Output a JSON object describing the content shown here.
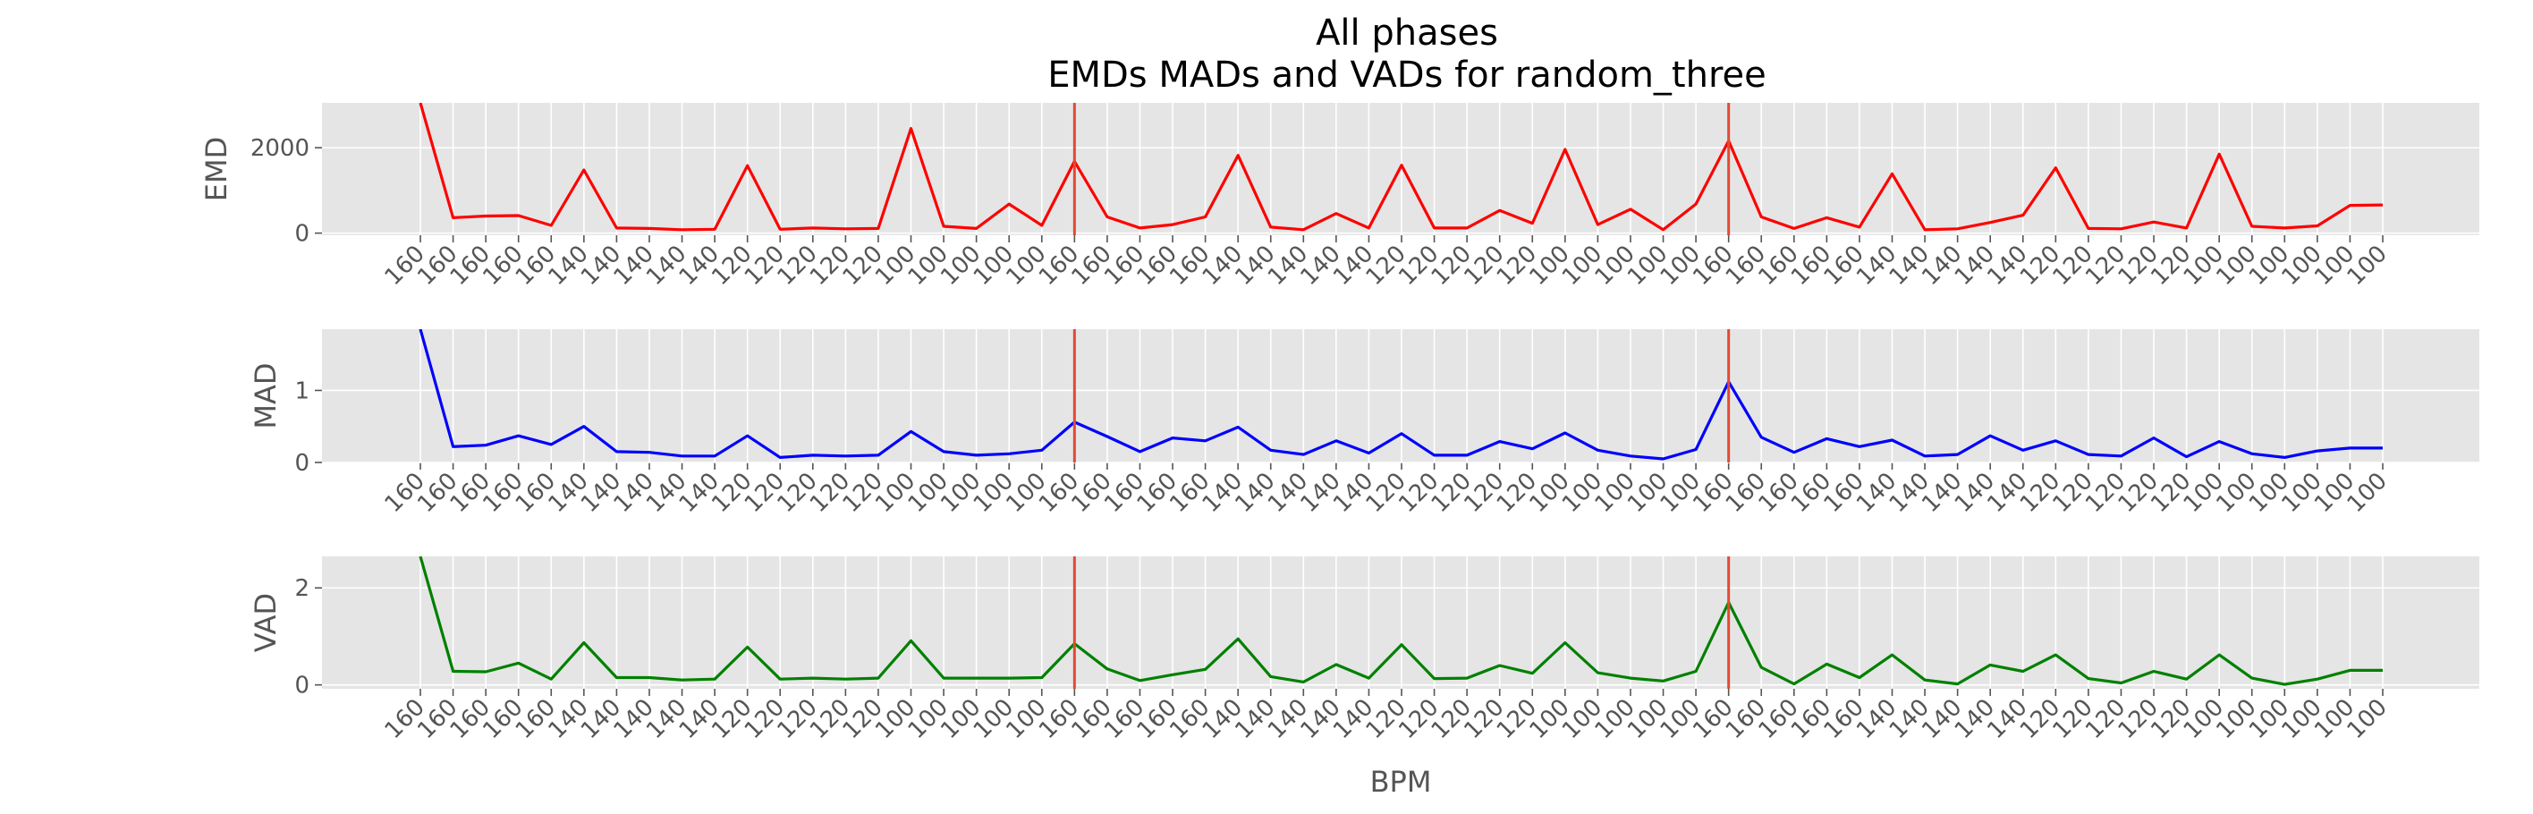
{
  "title_line1": "All phases",
  "title_line2": "EMDs MADs and VADs for random_three",
  "colors": {
    "panel_bg": "#e5e5e5",
    "grid": "#ffffff",
    "tick_text": "#555555",
    "label_text": "#555555",
    "title_text": "#000000",
    "phase_line": "#e24a33"
  },
  "chart_data": [
    {
      "type": "line",
      "ylabel": "EMD",
      "xlabel": "",
      "ylim": [
        -50,
        3050
      ],
      "yticks": [
        0,
        2000
      ],
      "ytick_labels": [
        "0",
        "2000"
      ],
      "grid": true,
      "phase_boundaries": [
        20,
        40
      ],
      "categories": [
        "160",
        "160",
        "160",
        "160",
        "160",
        "140",
        "140",
        "140",
        "140",
        "140",
        "120",
        "120",
        "120",
        "120",
        "120",
        "100",
        "100",
        "100",
        "100",
        "100",
        "160",
        "160",
        "160",
        "160",
        "160",
        "140",
        "140",
        "140",
        "140",
        "140",
        "120",
        "120",
        "120",
        "120",
        "120",
        "100",
        "100",
        "100",
        "100",
        "100",
        "160",
        "160",
        "160",
        "160",
        "160",
        "140",
        "140",
        "140",
        "140",
        "140",
        "120",
        "120",
        "120",
        "120",
        "120",
        "100",
        "100",
        "100",
        "100",
        "100",
        "100"
      ],
      "series": [
        {
          "color": "#ff0000",
          "values": [
            3050,
            360,
            400,
            410,
            180,
            1480,
            120,
            110,
            80,
            90,
            1580,
            90,
            120,
            100,
            110,
            2450,
            160,
            110,
            680,
            180,
            1680,
            380,
            120,
            200,
            380,
            1820,
            140,
            80,
            460,
            120,
            1590,
            120,
            120,
            530,
            230,
            1960,
            200,
            560,
            80,
            680,
            2160,
            380,
            110,
            360,
            140,
            1390,
            80,
            100,
            250,
            420,
            1530,
            110,
            100,
            260,
            120,
            1850,
            160,
            120,
            170,
            650,
            660
          ]
        }
      ]
    },
    {
      "type": "line",
      "ylabel": "MAD",
      "xlabel": "",
      "ylim": [
        0,
        1.85
      ],
      "yticks": [
        0,
        1
      ],
      "ytick_labels": [
        "0",
        "1"
      ],
      "grid": true,
      "phase_boundaries": [
        20,
        40
      ],
      "categories": [
        "160",
        "160",
        "160",
        "160",
        "160",
        "140",
        "140",
        "140",
        "140",
        "140",
        "120",
        "120",
        "120",
        "120",
        "120",
        "100",
        "100",
        "100",
        "100",
        "100",
        "160",
        "160",
        "160",
        "160",
        "160",
        "140",
        "140",
        "140",
        "140",
        "140",
        "120",
        "120",
        "120",
        "120",
        "120",
        "100",
        "100",
        "100",
        "100",
        "100",
        "160",
        "160",
        "160",
        "160",
        "160",
        "140",
        "140",
        "140",
        "140",
        "140",
        "120",
        "120",
        "120",
        "120",
        "120",
        "100",
        "100",
        "100",
        "100",
        "100",
        "100"
      ],
      "series": [
        {
          "color": "#0000ff",
          "values": [
            1.85,
            0.22,
            0.24,
            0.37,
            0.25,
            0.5,
            0.15,
            0.14,
            0.09,
            0.09,
            0.37,
            0.07,
            0.1,
            0.09,
            0.1,
            0.43,
            0.15,
            0.1,
            0.12,
            0.17,
            0.56,
            0.36,
            0.15,
            0.34,
            0.3,
            0.49,
            0.17,
            0.11,
            0.3,
            0.13,
            0.4,
            0.1,
            0.1,
            0.29,
            0.19,
            0.41,
            0.17,
            0.09,
            0.05,
            0.18,
            1.12,
            0.35,
            0.14,
            0.33,
            0.22,
            0.31,
            0.09,
            0.11,
            0.37,
            0.17,
            0.3,
            0.11,
            0.09,
            0.34,
            0.08,
            0.29,
            0.12,
            0.07,
            0.16,
            0.2,
            0.2
          ]
        }
      ]
    },
    {
      "type": "line",
      "ylabel": "VAD",
      "xlabel": "BPM",
      "ylim": [
        -0.08,
        2.65
      ],
      "yticks": [
        0,
        2
      ],
      "ytick_labels": [
        "0",
        "2"
      ],
      "grid": true,
      "phase_boundaries": [
        20,
        40
      ],
      "categories": [
        "160",
        "160",
        "160",
        "160",
        "160",
        "140",
        "140",
        "140",
        "140",
        "140",
        "120",
        "120",
        "120",
        "120",
        "120",
        "100",
        "100",
        "100",
        "100",
        "100",
        "160",
        "160",
        "160",
        "160",
        "160",
        "140",
        "140",
        "140",
        "140",
        "140",
        "120",
        "120",
        "120",
        "120",
        "120",
        "100",
        "100",
        "100",
        "100",
        "100",
        "160",
        "160",
        "160",
        "160",
        "160",
        "140",
        "140",
        "140",
        "140",
        "140",
        "120",
        "120",
        "120",
        "120",
        "120",
        "100",
        "100",
        "100",
        "100",
        "100",
        "100"
      ],
      "series": [
        {
          "color": "#008000",
          "values": [
            2.65,
            0.28,
            0.27,
            0.45,
            0.12,
            0.87,
            0.15,
            0.15,
            0.1,
            0.12,
            0.78,
            0.12,
            0.14,
            0.12,
            0.14,
            0.91,
            0.14,
            0.14,
            0.14,
            0.15,
            0.85,
            0.33,
            0.09,
            0.21,
            0.32,
            0.95,
            0.17,
            0.06,
            0.42,
            0.14,
            0.83,
            0.13,
            0.14,
            0.4,
            0.24,
            0.87,
            0.25,
            0.14,
            0.08,
            0.28,
            1.7,
            0.36,
            0.02,
            0.43,
            0.15,
            0.62,
            0.1,
            0.02,
            0.41,
            0.28,
            0.62,
            0.13,
            0.04,
            0.28,
            0.12,
            0.62,
            0.14,
            0.01,
            0.12,
            0.3,
            0.3
          ]
        }
      ]
    }
  ]
}
